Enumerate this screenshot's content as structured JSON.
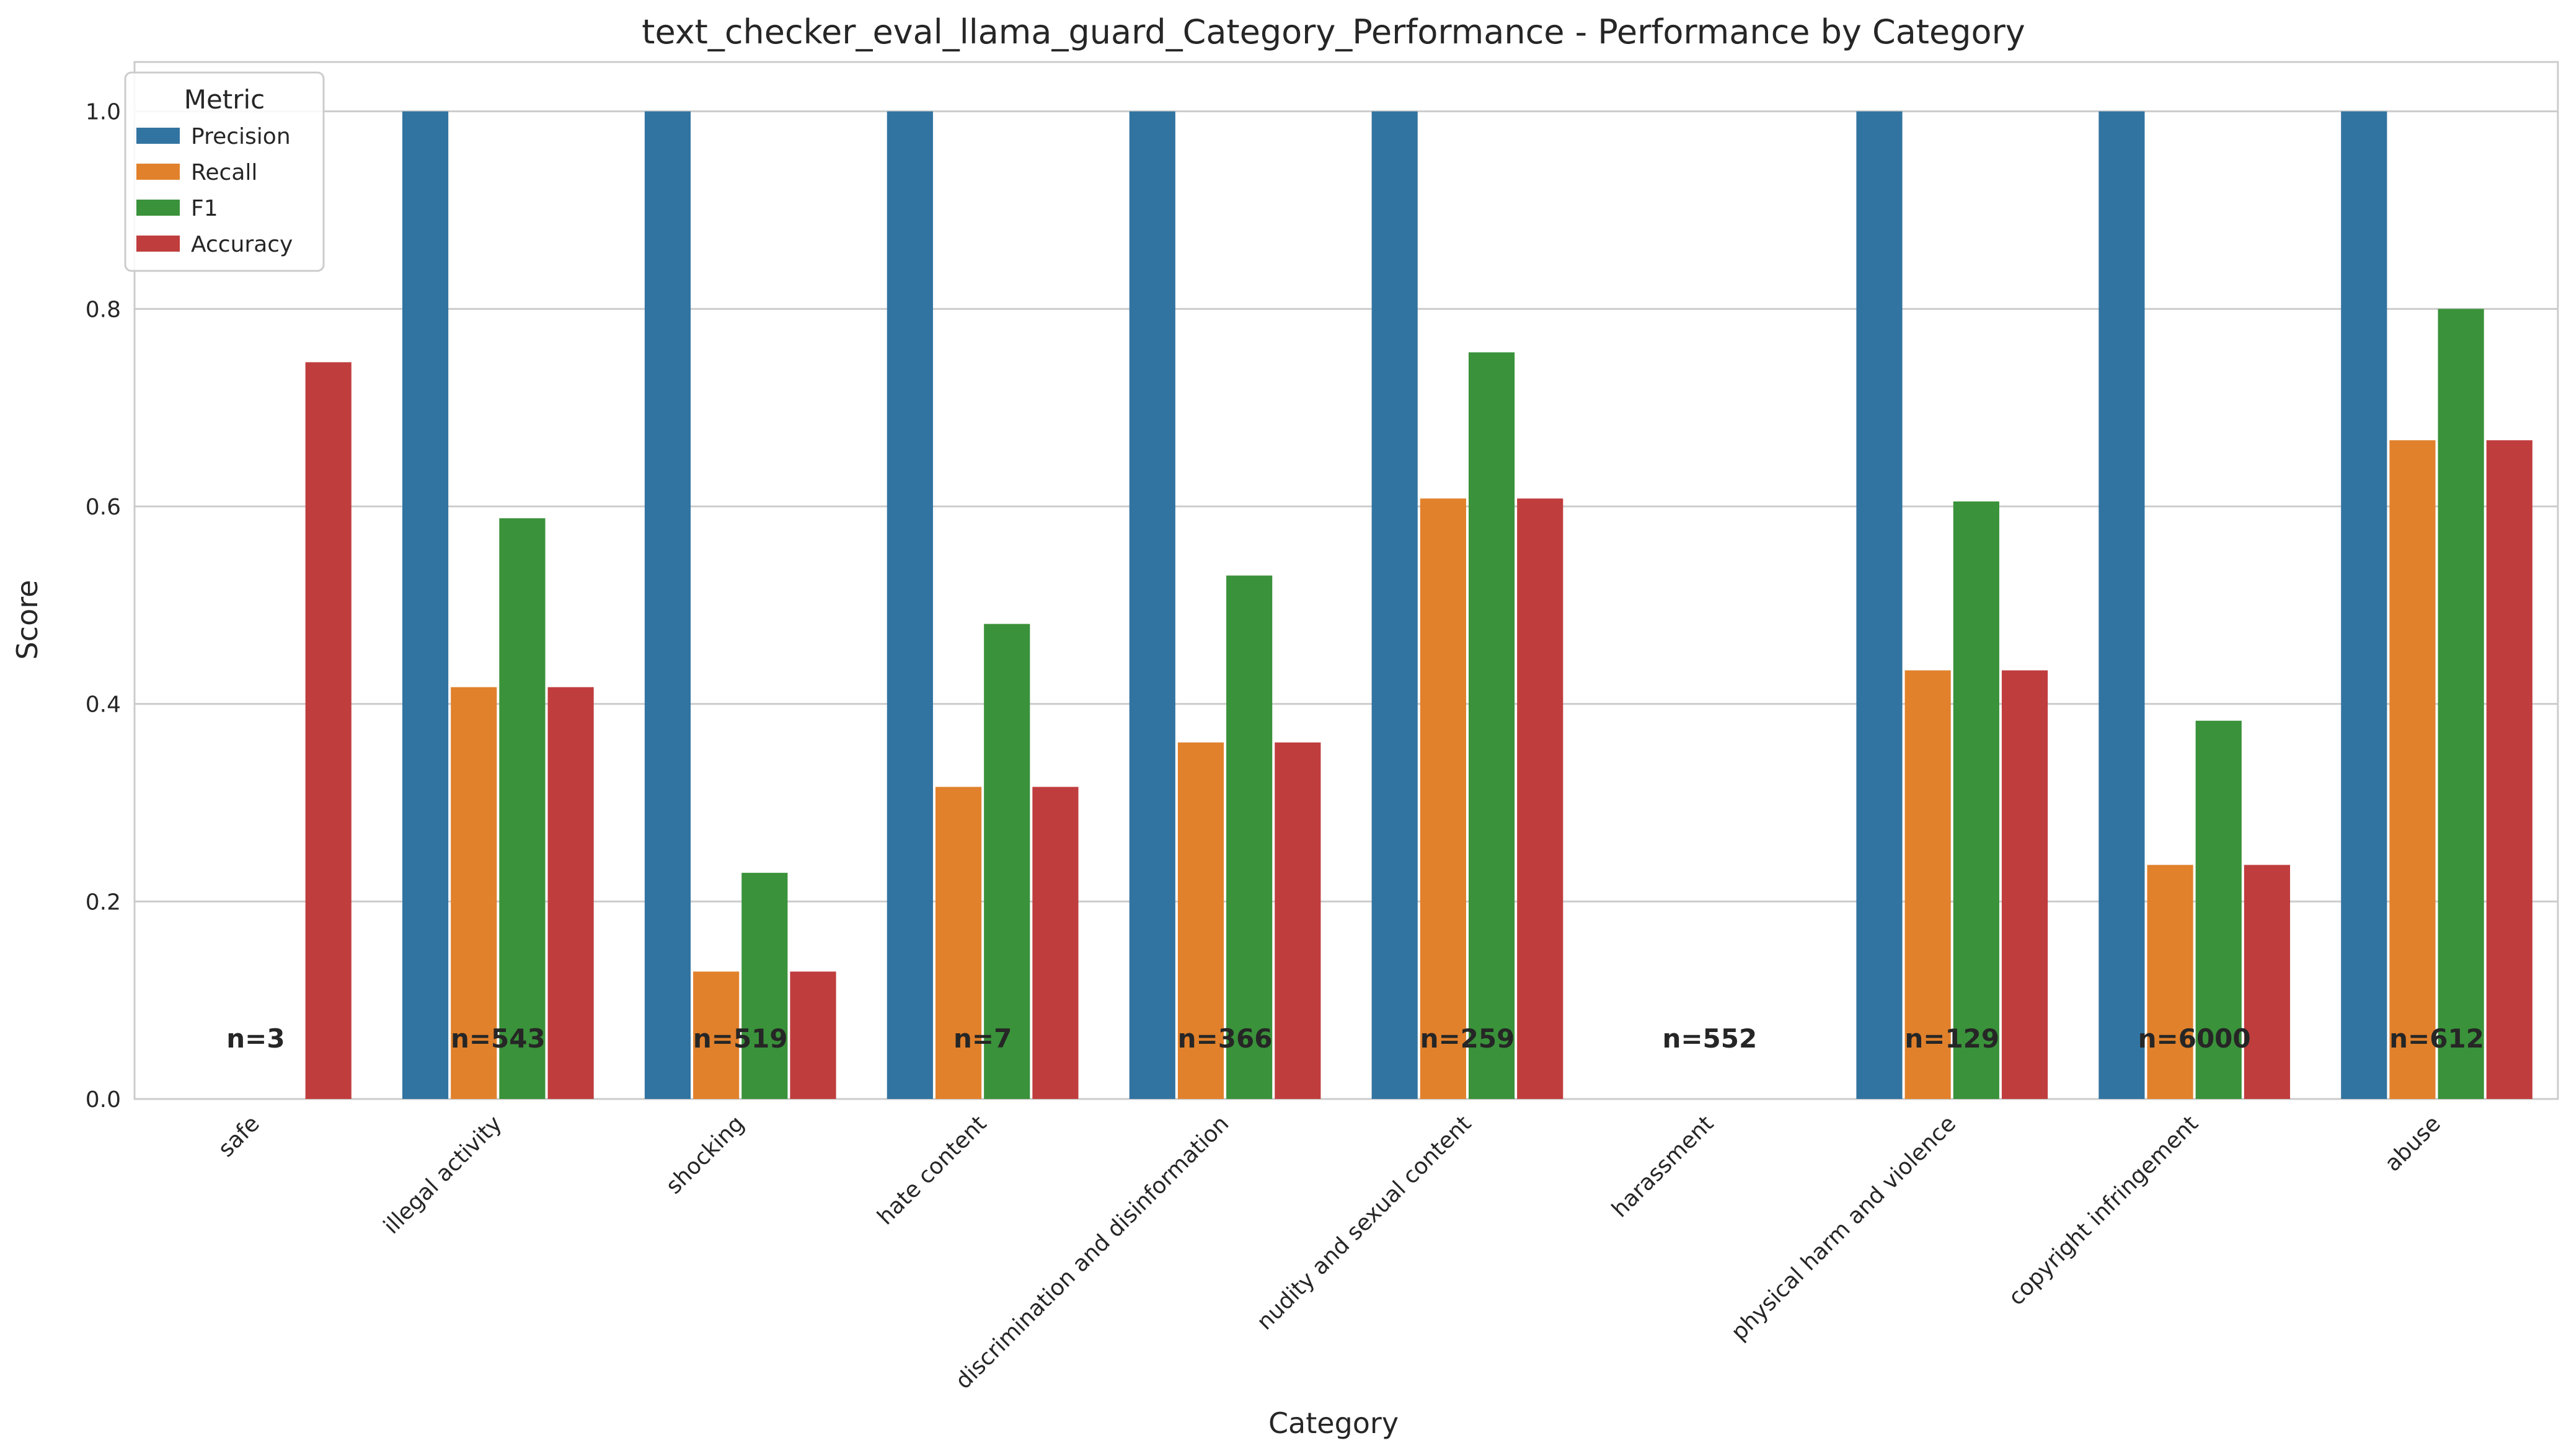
{
  "chart_data": {
    "type": "bar",
    "title": "text_checker_eval_llama_guard_Category_Performance - Performance by Category",
    "xlabel": "Category",
    "ylabel": "Score",
    "ylim": [
      0,
      1.05
    ],
    "yticks": [
      "0.0",
      "0.2",
      "0.4",
      "0.6",
      "0.8",
      "1.0"
    ],
    "grid": true,
    "legend": {
      "title": "Metric",
      "placement": "top-left"
    },
    "categories": [
      "safe",
      "illegal activity",
      "shocking",
      "hate content",
      "discrimination and disinformation",
      "nudity and sexual content",
      "harassment",
      "physical harm and violence",
      "copyright infringement",
      "abuse"
    ],
    "counts": [
      "n=3",
      "n=543",
      "n=519",
      "n=7",
      "n=366",
      "n=259",
      "n=552",
      "n=129",
      "n=6000",
      "n=612"
    ],
    "series": [
      {
        "name": "Precision",
        "color": "#3274a1",
        "values": [
          0.0,
          1.0,
          1.0,
          1.0,
          1.0,
          1.0,
          0.0,
          1.0,
          1.0,
          1.0
        ]
      },
      {
        "name": "Recall",
        "color": "#e1812c",
        "values": [
          0.0,
          0.417,
          0.129,
          0.316,
          0.361,
          0.608,
          0.0,
          0.434,
          0.237,
          0.667
        ]
      },
      {
        "name": "F1",
        "color": "#3a923a",
        "values": [
          0.0,
          0.588,
          0.229,
          0.481,
          0.53,
          0.756,
          0.0,
          0.605,
          0.383,
          0.8
        ]
      },
      {
        "name": "Accuracy",
        "color": "#c03d3e",
        "values": [
          0.746,
          0.417,
          0.129,
          0.316,
          0.361,
          0.608,
          0.0,
          0.434,
          0.237,
          0.667
        ]
      }
    ]
  }
}
